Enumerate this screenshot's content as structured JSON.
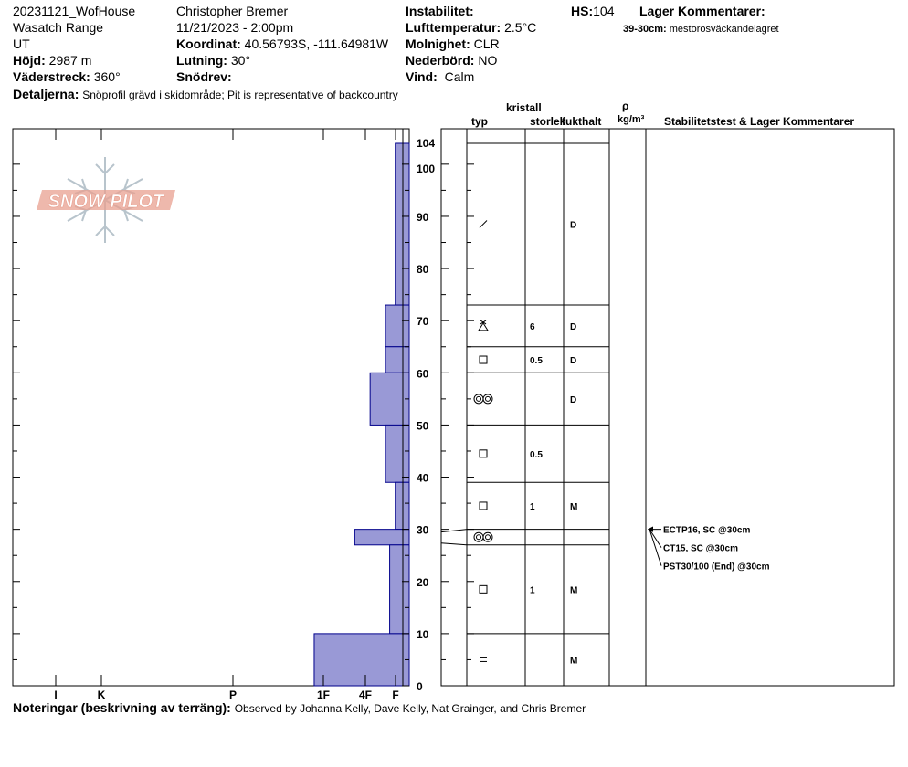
{
  "header": {
    "pit_name": "20231121_WofHouse",
    "range": "Wasatch Range",
    "state": "UT",
    "elevation_label": "Höjd:",
    "elevation_value": "2987 m",
    "aspect_label": "Väderstreck:",
    "aspect_value": "360°",
    "observer": "Christopher Bremer",
    "datetime": "11/21/2023 - 2:00pm",
    "coord_label": "Koordinat:",
    "coord_value": "40.56793S, -111.64981W",
    "slope_label": "Lutning:",
    "slope_value": "30°",
    "drift_label": "Snödrev:",
    "drift_value": "",
    "instability_label": "Instabilitet:",
    "airtemp_label": "Lufttemperatur:",
    "airtemp_value": "2.5°C",
    "sky_label": "Molnighet:",
    "sky_value": "CLR",
    "precip_label": "Nederbörd:",
    "precip_value": "NO",
    "wind_label": "Vind:",
    "wind_value": "Calm",
    "hs_label": "HS:",
    "hs_value": "104",
    "layer_comments_label": "Lager Kommentarer:",
    "layer_comment_range": "39-30cm:",
    "layer_comment_text": "mestorosväckandelagret",
    "details_label": "Detaljerna:",
    "details_value": "Snöprofil grävd i skidområde;  Pit is representative of backcountry"
  },
  "columns": {
    "kristall": "kristall",
    "typ": "typ",
    "storlek": "storlek",
    "fukthalt": "fukthalt",
    "rho": "ρ",
    "density_unit": "kg/m³",
    "stability": "Stabilitetstest & Lager Kommentarer"
  },
  "logo": {
    "text": "SNOW PILOT",
    "icon": "snowflake-icon"
  },
  "footer": {
    "notes_label": "Noteringar (beskrivning av terräng):",
    "notes_value": "Observed by Johanna Kelly, Dave Kelly, Nat Grainger, and Chris Bremer"
  },
  "colors": {
    "hardness_fill": "#9999d6",
    "hardness_stroke": "#00008b",
    "logo": "#e8a090",
    "flake": "#b8c4cc"
  },
  "chart_data": {
    "type": "bar",
    "y_axis": {
      "range": [
        0,
        104
      ],
      "ticks": [
        0,
        10,
        20,
        30,
        40,
        50,
        60,
        70,
        80,
        90,
        100,
        104
      ]
    },
    "hardness_scale": [
      "I",
      "K",
      "P",
      "1F",
      "4F",
      "F"
    ],
    "layers": [
      {
        "bottom": 73,
        "top": 104,
        "hardness": "4F",
        "hardness_index": 1.0,
        "grain": "decomposing",
        "size": "",
        "wetness": "D"
      },
      {
        "bottom": 65,
        "top": 73,
        "hardness": "1F",
        "hardness_index": 1.7,
        "grain": "surface-hoar",
        "size": "6",
        "wetness": "D"
      },
      {
        "bottom": 60,
        "top": 65,
        "hardness": "1F",
        "hardness_index": 1.7,
        "grain": "faceted",
        "size": "0.5",
        "wetness": "D"
      },
      {
        "bottom": 50,
        "top": 60,
        "hardness": "P-",
        "hardness_index": 2.8,
        "grain": "rounded-polycrystals",
        "size": "",
        "wetness": "D"
      },
      {
        "bottom": 39,
        "top": 50,
        "hardness": "1F",
        "hardness_index": 1.7,
        "grain": "faceted",
        "size": "0.5",
        "wetness": ""
      },
      {
        "bottom": 30,
        "top": 39,
        "hardness": "4F",
        "hardness_index": 1.0,
        "grain": "faceted",
        "size": "1",
        "wetness": "M"
      },
      {
        "bottom": 27,
        "top": 30,
        "hardness": "P+",
        "hardness_index": 3.9,
        "grain": "rounded-polycrystals",
        "size": "",
        "wetness": ""
      },
      {
        "bottom": 10,
        "top": 27,
        "hardness": "1F-",
        "hardness_index": 1.4,
        "grain": "faceted",
        "size": "1",
        "wetness": "M"
      },
      {
        "bottom": 0,
        "top": 10,
        "hardness": "K+",
        "hardness_index": 6.8,
        "grain": "ice-crust",
        "size": "",
        "wetness": "M"
      }
    ],
    "stability_tests": [
      {
        "label": "ECTP16, SC @30cm",
        "depth": 30
      },
      {
        "label": "CT15, SC @30cm",
        "depth": 30
      },
      {
        "label": "PST30/100 (End) @30cm",
        "depth": 30
      }
    ]
  }
}
